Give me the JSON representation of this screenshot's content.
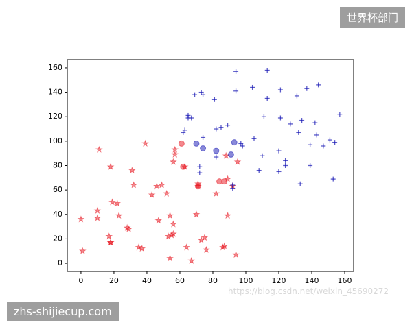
{
  "chart_data": {
    "type": "scatter",
    "xlim": [
      -8.3,
      165.4
    ],
    "ylim": [
      -6.7,
      166.7
    ],
    "xticks": [
      0,
      20,
      40,
      60,
      80,
      100,
      120,
      140,
      160
    ],
    "yticks": [
      0,
      20,
      40,
      60,
      80,
      100,
      120,
      140,
      160
    ],
    "alpha": 0.5,
    "series": [
      {
        "color": "#e8141e",
        "marker": "star",
        "x": [
          0,
          1,
          11,
          10,
          10,
          18,
          17,
          18,
          18,
          19,
          22,
          23,
          28,
          29,
          31,
          32,
          35,
          37,
          39,
          43,
          46,
          47,
          49,
          52,
          53,
          54,
          54,
          55,
          56,
          56,
          56,
          57,
          57,
          63,
          64,
          67,
          70,
          71,
          71,
          73,
          75,
          76,
          82,
          86,
          87,
          88,
          89,
          89,
          92,
          94,
          95
        ],
        "y": [
          36,
          10,
          93,
          43,
          37,
          79,
          22,
          17,
          17,
          50,
          49,
          39,
          29,
          28,
          76,
          64,
          13,
          12,
          98,
          56,
          63,
          35,
          64,
          57,
          22,
          4,
          39,
          23,
          32,
          24,
          83,
          89,
          93,
          79,
          13,
          2,
          40,
          65,
          63,
          19,
          21,
          11,
          57,
          13,
          14,
          88,
          39,
          69,
          63,
          7,
          83
        ]
      },
      {
        "color": "#e8141e",
        "marker": "circle",
        "x": [
          61,
          62,
          71,
          84,
          87
        ],
        "y": [
          98,
          79,
          63,
          67,
          67
        ]
      },
      {
        "color": "#1414b4",
        "marker": "plus",
        "x": [
          94,
          113,
          94,
          104,
          121,
          113,
          69,
          73,
          74,
          81,
          131,
          137,
          144,
          65,
          65,
          67,
          111,
          121,
          127,
          134,
          142,
          157,
          62,
          63,
          74,
          82,
          85,
          89,
          105,
          132,
          143,
          147,
          139,
          151,
          154,
          97,
          98,
          120,
          110,
          124,
          124,
          139,
          72,
          72,
          82,
          92,
          92,
          108,
          120,
          133,
          153
        ],
        "y": [
          157,
          158,
          141,
          144,
          142,
          135,
          138,
          140,
          138,
          134,
          137,
          143,
          146,
          121,
          119,
          119,
          120,
          119,
          114,
          117,
          115,
          122,
          107,
          109,
          103,
          110,
          111,
          113,
          102,
          107,
          105,
          96,
          97,
          101,
          99,
          98,
          96,
          92,
          88,
          84,
          80,
          80,
          79,
          74,
          87,
          61,
          64,
          76,
          75,
          65,
          69
        ]
      },
      {
        "color": "#1414b4",
        "marker": "circle",
        "x": [
          70,
          74,
          82,
          91,
          93
        ],
        "y": [
          98,
          94,
          92,
          89,
          99
        ]
      }
    ]
  },
  "watermarks": {
    "top": "世界杯部门",
    "bottom": "zhs-shijiecup.com",
    "url": "https://blog.csdn.net/weixin_45690272"
  }
}
